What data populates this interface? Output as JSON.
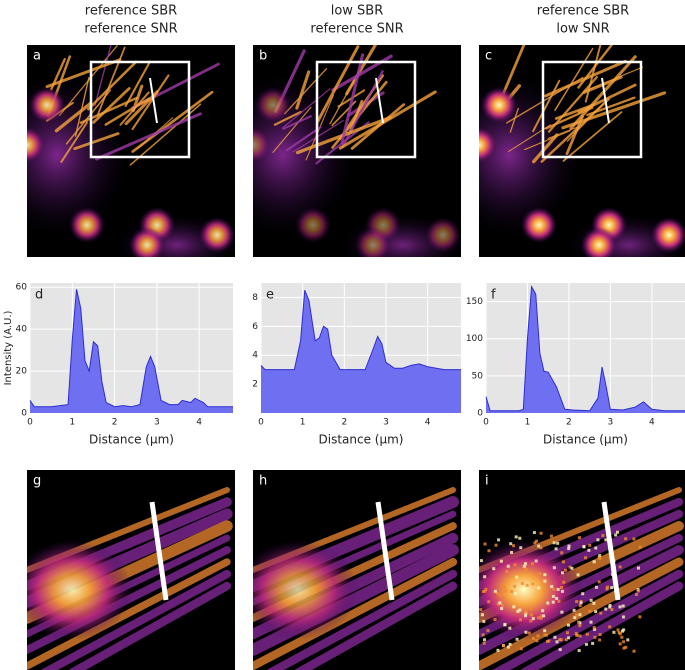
{
  "columns": [
    {
      "header": [
        "reference SBR",
        "reference SNR"
      ]
    },
    {
      "header": [
        "low SBR",
        "reference SNR"
      ]
    },
    {
      "header": [
        "reference SBR",
        "low SNR"
      ]
    }
  ],
  "images_top": [
    {
      "label": "a"
    },
    {
      "label": "b"
    },
    {
      "label": "c"
    }
  ],
  "images_zoom": [
    {
      "label": "g"
    },
    {
      "label": "h"
    },
    {
      "label": "i"
    }
  ],
  "chart_data": [
    {
      "type": "area",
      "label": "d",
      "y_label": "Intensity (A.U.)",
      "x_label": "Distance (µm)",
      "color": "#6f6ff2",
      "edge": "#2d2dd0",
      "x": [
        0,
        0.1,
        0.5,
        0.9,
        1.0,
        1.1,
        1.2,
        1.3,
        1.4,
        1.5,
        1.6,
        1.7,
        1.8,
        2.0,
        2.2,
        2.4,
        2.6,
        2.75,
        2.85,
        2.95,
        3.1,
        3.3,
        3.5,
        3.6,
        3.8,
        3.9,
        4.1,
        4.2,
        4.5,
        4.8
      ],
      "values": [
        6,
        3,
        3,
        4,
        35,
        59,
        50,
        25,
        20,
        34,
        32,
        15,
        5,
        3,
        3.5,
        3,
        4,
        22,
        27,
        22,
        6,
        4,
        4,
        6,
        5,
        7,
        5,
        3,
        3,
        3
      ],
      "xlim": [
        0,
        4.8
      ],
      "xticks": [
        0,
        1,
        2,
        3,
        4
      ],
      "ylim": [
        0,
        62
      ],
      "yticks": [
        0,
        20,
        40,
        60
      ],
      "grid": true
    },
    {
      "type": "area",
      "label": "e",
      "x_label": "Distance (µm)",
      "color": "#6f6ff2",
      "edge": "#2d2dd0",
      "x": [
        0,
        0.1,
        0.8,
        0.95,
        1.05,
        1.15,
        1.3,
        1.4,
        1.5,
        1.6,
        1.7,
        1.9,
        2.2,
        2.5,
        2.7,
        2.8,
        2.9,
        3.0,
        3.2,
        3.4,
        3.6,
        3.8,
        4.0,
        4.4,
        4.8
      ],
      "values": [
        3.3,
        3,
        3,
        5,
        8.5,
        7.8,
        5,
        5.2,
        6,
        5.8,
        4,
        3,
        3,
        3,
        4.5,
        5.3,
        4.8,
        3.5,
        3.1,
        3.1,
        3.3,
        3.4,
        3.2,
        3,
        3
      ],
      "xlim": [
        0,
        4.8
      ],
      "xticks": [
        0,
        1,
        2,
        3,
        4
      ],
      "ylim": [
        0,
        9
      ],
      "yticks": [
        2,
        4,
        6,
        8
      ],
      "grid": true
    },
    {
      "type": "area",
      "label": "f",
      "x_label": "Distance (µm)",
      "color": "#6f6ff2",
      "edge": "#2d2dd0",
      "x": [
        0,
        0.1,
        0.8,
        0.9,
        1.0,
        1.1,
        1.2,
        1.3,
        1.4,
        1.5,
        1.7,
        1.9,
        2.1,
        2.5,
        2.7,
        2.8,
        2.9,
        3.0,
        3.3,
        3.6,
        3.8,
        4.0,
        4.3,
        4.8
      ],
      "values": [
        22,
        3,
        3,
        5,
        100,
        170,
        160,
        80,
        56,
        55,
        35,
        5,
        4,
        3,
        20,
        62,
        35,
        5,
        4,
        8,
        15,
        5,
        3,
        3
      ],
      "xlim": [
        0,
        4.8
      ],
      "xticks": [
        0,
        1,
        2,
        3,
        4
      ],
      "ylim": [
        0,
        175
      ],
      "yticks": [
        0,
        50,
        100,
        150
      ],
      "grid": true
    }
  ]
}
